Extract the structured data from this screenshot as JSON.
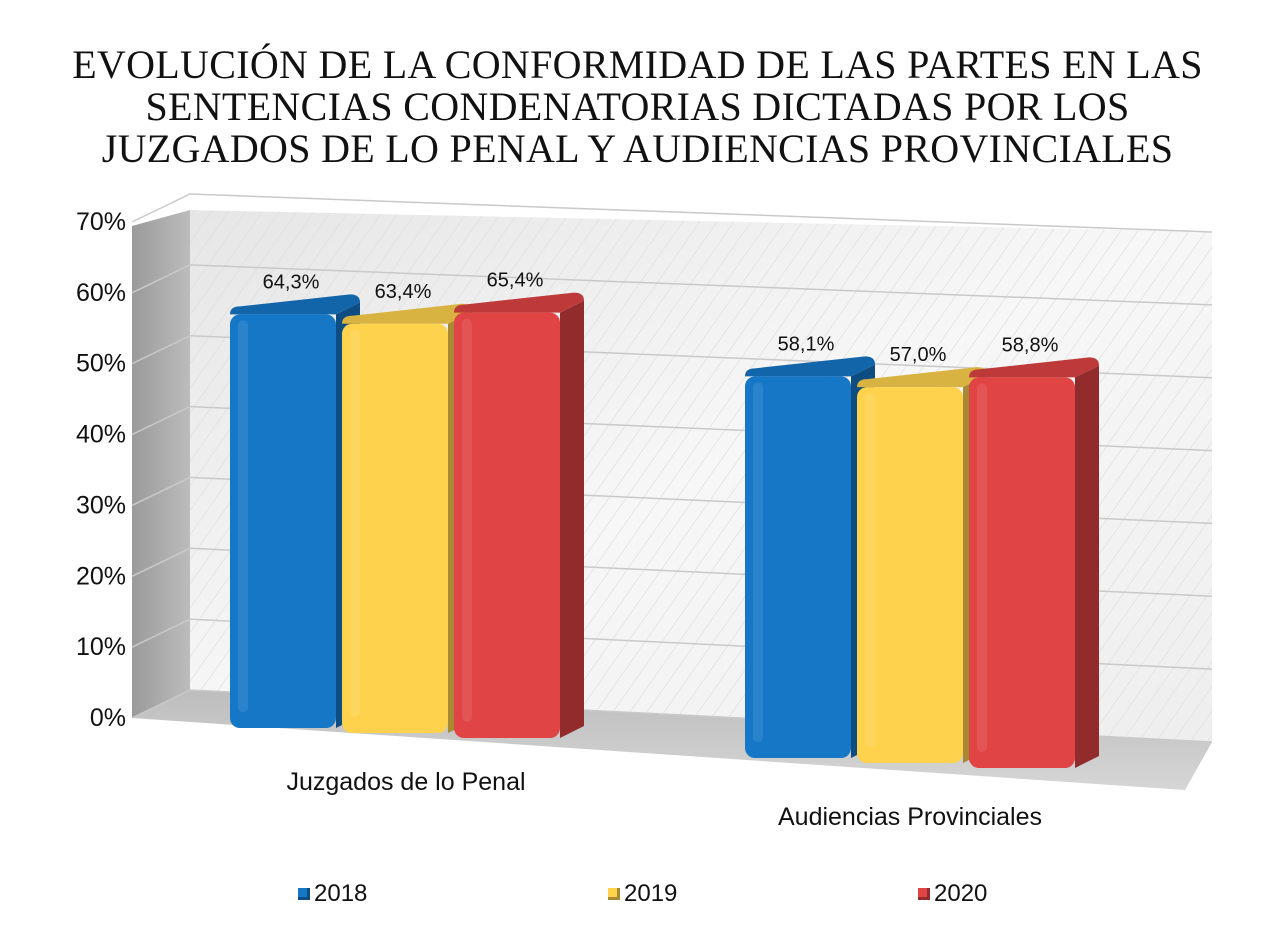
{
  "chart_data": {
    "type": "bar",
    "title_lines": [
      "EVOLUCIÓN DE LA CONFORMIDAD DE LAS PARTES EN LAS",
      "SENTENCIAS CONDENATORIAS DICTADAS POR LOS",
      "JUZGADOS DE LO PENAL Y AUDIENCIAS PROVINCIALES"
    ],
    "categories": [
      "Juzgados de lo Penal",
      "Audiencias Provinciales"
    ],
    "series": [
      {
        "name": "2018",
        "values": [
          64.3,
          58.1
        ],
        "labels": [
          "64,3%",
          "58,1%"
        ],
        "color": "#1677C7"
      },
      {
        "name": "2019",
        "values": [
          63.4,
          57.0
        ],
        "labels": [
          "63,4%",
          "57,0%"
        ],
        "color": "#FFD24D"
      },
      {
        "name": "2020",
        "values": [
          65.4,
          58.8
        ],
        "labels": [
          "65,4%",
          "58,8%"
        ],
        "color": "#E04444"
      }
    ],
    "ylim": [
      0,
      70
    ],
    "yticks": [
      "0%",
      "10%",
      "20%",
      "30%",
      "40%",
      "50%",
      "60%",
      "70%"
    ],
    "grid": true,
    "legend_position": "bottom",
    "style": "3d-clustered-column"
  }
}
